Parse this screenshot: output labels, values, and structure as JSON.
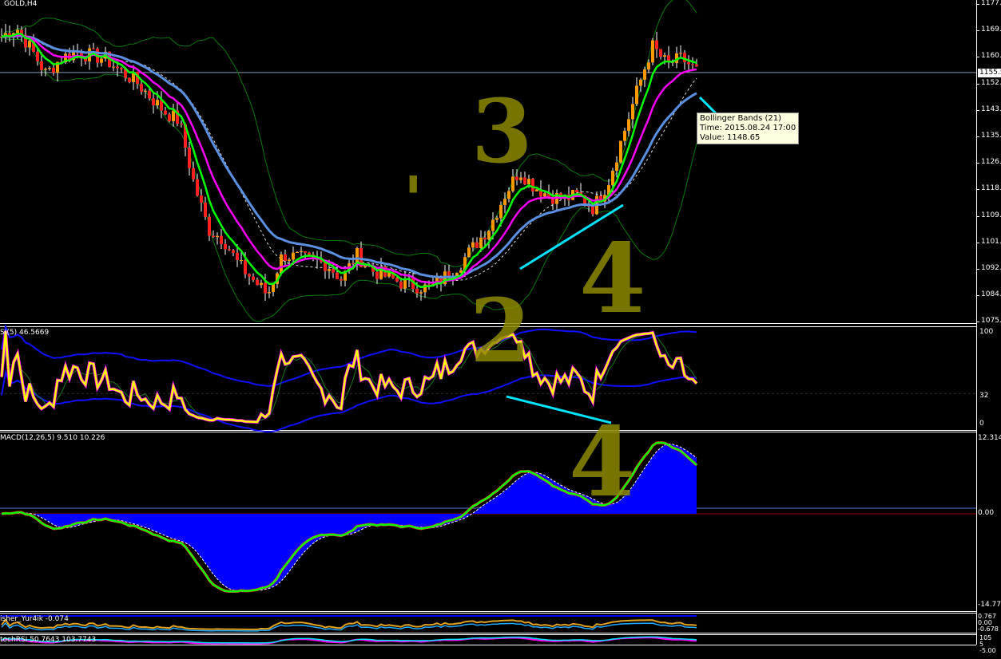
{
  "symbol_label": "GOLD,H4",
  "current_price_label": "1155.5",
  "price_axis": [
    "1177.5",
    "1169.0",
    "1160.5",
    "1152.0",
    "1143.5",
    "1135.0",
    "1126.5",
    "1118.0",
    "1109.5",
    "1101.0",
    "1092.5",
    "1084.0",
    "1075.5"
  ],
  "tooltip": {
    "line1": "Bollinger Bands (21)",
    "line2": "Time: 2015.08.24 17:00",
    "line3": "Value: 1148.65"
  },
  "rsi": {
    "label": "SI(5) 46.5669",
    "axis": [
      "100",
      "32",
      "0"
    ]
  },
  "macd": {
    "label": "MACD(12,26,5) 9.510 10.226",
    "axis": [
      "12.314",
      "0.00",
      "-14.772"
    ]
  },
  "fisher": {
    "label": "isher_Yur4ik -0.074",
    "axis": [
      "0.767",
      "0.00",
      "-0.678"
    ]
  },
  "stoch": {
    "label": "tochRSI 50.7643 103.7743",
    "axis": [
      "105",
      "5",
      "-5.00"
    ]
  },
  "annotations": [
    "3",
    "'",
    "2",
    "4",
    "4"
  ],
  "colors": {
    "bull": "#ff9900",
    "bear": "#ff2020",
    "ma_fast": "#00ff00",
    "ma_mid": "#ff00ff",
    "ma_slow": "#5b8fe0",
    "bands": "#0a7a0a",
    "rsi": "#ffff00",
    "macd": "#00ff00",
    "hist": "#0000ff",
    "arrow": "#00e5ff"
  },
  "chart_data": {
    "type": "candlestick",
    "title": "GOLD,H4",
    "ylim": [
      1075.5,
      1177.5
    ],
    "closes": [
      1167,
      1170,
      1163,
      1155,
      1160,
      1162,
      1161,
      1160,
      1156,
      1153,
      1148,
      1143,
      1140,
      1120,
      1105,
      1102,
      1094,
      1089,
      1084,
      1097,
      1096,
      1095,
      1094,
      1089,
      1097,
      1092,
      1090,
      1088,
      1087,
      1086,
      1090,
      1094,
      1100,
      1106,
      1116,
      1124,
      1119,
      1116,
      1115,
      1116,
      1112,
      1120,
      1135,
      1150,
      1164,
      1158,
      1160,
      1156
    ]
  }
}
